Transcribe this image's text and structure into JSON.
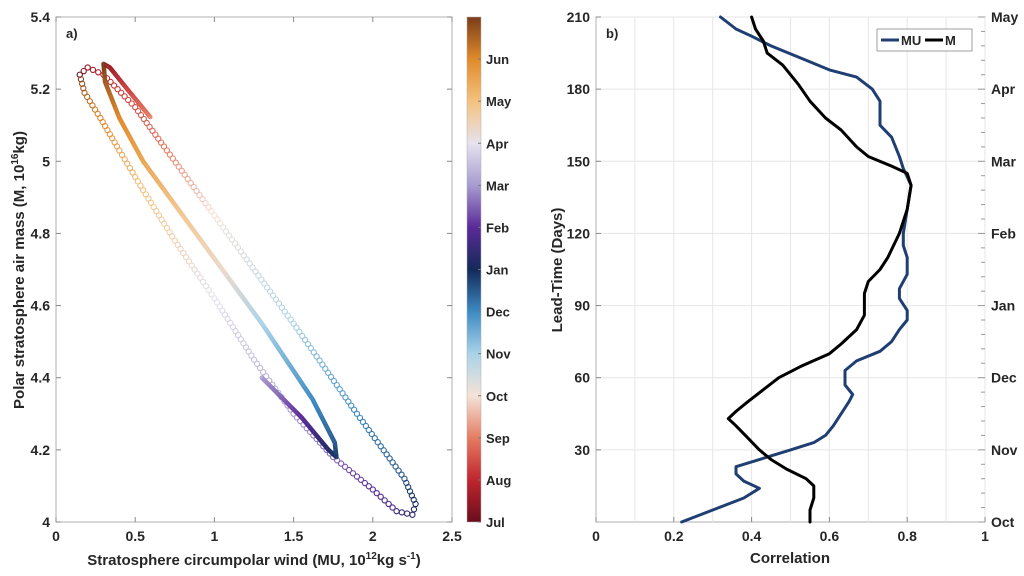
{
  "chart_data": [
    {
      "type": "scatter",
      "panel_label": "a)",
      "xlabel_parts": [
        "Stratosphere circumpolar wind (MU, 10",
        "12",
        "kg s",
        "-1",
        ")"
      ],
      "ylabel_parts": [
        "Polar stratosphere air mass (M, 10",
        "16",
        "kg)"
      ],
      "xlim": [
        0,
        2.5
      ],
      "ylim": [
        4,
        5.4
      ],
      "xticks": [
        0,
        0.5,
        1,
        1.5,
        2,
        2.5
      ],
      "xtick_labels": [
        "0",
        "0.5",
        "1",
        "1.5",
        "2",
        "2.5"
      ],
      "yticks": [
        4,
        4.2,
        4.4,
        4.6,
        4.8,
        5,
        5.2,
        5.4
      ],
      "ytick_labels": [
        "4",
        "4.2",
        "4.4",
        "4.6",
        "4.8",
        "5",
        "5.2",
        "5.4"
      ],
      "grid": false,
      "colorbar": {
        "labels": [
          "Jul",
          "Aug",
          "Sep",
          "Oct",
          "Nov",
          "Dec",
          "Jan",
          "Feb",
          "Mar",
          "Apr",
          "May",
          "Jun"
        ],
        "colors": [
          "#6a0d1c",
          "#c0252e",
          "#e57c62",
          "#f4e3d8",
          "#a9d3e8",
          "#3d8ac2",
          "#14295a",
          "#5a2a98",
          "#a79bd0",
          "#e6e2ee",
          "#f5c27e",
          "#e08a2a",
          "#7a3c1a"
        ]
      },
      "series": [
        {
          "marker": "open-circle",
          "points_month_mu_m": [
            [
              0,
              0.15,
              5.24
            ],
            [
              0.5,
              0.2,
              5.26
            ],
            [
              1,
              0.3,
              5.24
            ],
            [
              1.5,
              0.5,
              5.15
            ],
            [
              2,
              0.7,
              5.03
            ],
            [
              3,
              1.0,
              4.85
            ],
            [
              4,
              1.5,
              4.55
            ],
            [
              5,
              1.9,
              4.3
            ],
            [
              5.6,
              2.2,
              4.12
            ],
            [
              6,
              2.27,
              4.05
            ],
            [
              6.3,
              2.25,
              4.02
            ],
            [
              6.6,
              2.15,
              4.03
            ],
            [
              7,
              2.0,
              4.09
            ],
            [
              7.5,
              1.75,
              4.18
            ],
            [
              8,
              1.5,
              4.3
            ],
            [
              8.5,
              1.25,
              4.45
            ],
            [
              9,
              1.0,
              4.62
            ],
            [
              9.5,
              0.75,
              4.78
            ],
            [
              10,
              0.55,
              4.92
            ],
            [
              10.5,
              0.4,
              5.03
            ],
            [
              11,
              0.28,
              5.12
            ],
            [
              11.5,
              0.18,
              5.19
            ],
            [
              12,
              0.15,
              5.24
            ]
          ]
        },
        {
          "marker": "dense-circle",
          "points_month_mu_m": [
            [
              8,
              1.3,
              4.4
            ],
            [
              7,
              1.55,
              4.29
            ],
            [
              6.2,
              1.72,
              4.2
            ],
            [
              5.9,
              1.77,
              4.18
            ],
            [
              5.5,
              1.76,
              4.22
            ],
            [
              5,
              1.62,
              4.34
            ],
            [
              4,
              1.3,
              4.55
            ],
            [
              9.3,
              1.05,
              4.7
            ],
            [
              9.8,
              0.8,
              4.85
            ],
            [
              10.5,
              0.55,
              5.0
            ],
            [
              11,
              0.4,
              5.12
            ],
            [
              11.6,
              0.31,
              5.22
            ],
            [
              12,
              0.3,
              5.27
            ],
            [
              0.6,
              0.34,
              5.26
            ],
            [
              1.3,
              0.45,
              5.2
            ],
            [
              2,
              0.6,
              5.12
            ]
          ]
        }
      ]
    },
    {
      "type": "line",
      "panel_label": "b)",
      "xlabel": "Correlation",
      "ylabel": "Lead-Time (Days)",
      "xlim": [
        0,
        1
      ],
      "ylim": [
        0,
        210
      ],
      "xticks": [
        0,
        0.2,
        0.4,
        0.6,
        0.8,
        1
      ],
      "xtick_labels": [
        "0",
        "0.2",
        "0.4",
        "0.6",
        "0.8",
        "1"
      ],
      "yticks": [
        30,
        60,
        90,
        120,
        150,
        180,
        210
      ],
      "ytick_labels": [
        "30",
        "60",
        "90",
        "120",
        "150",
        "180",
        "210"
      ],
      "right_ticks": [
        0,
        30,
        60,
        90,
        120,
        150,
        180,
        210
      ],
      "right_tick_labels": [
        "Oct",
        "Nov",
        "Dec",
        "Jan",
        "Feb",
        "Mar",
        "Apr",
        "May"
      ],
      "grid": true,
      "legend_position": "top-right",
      "series": [
        {
          "name": "MU",
          "color": "#1f3f73",
          "days": [
            0,
            5,
            10,
            14,
            17,
            20,
            23,
            27,
            30,
            33,
            36,
            40,
            45,
            50,
            53,
            57,
            63,
            67,
            71,
            75,
            80,
            84,
            88,
            93,
            97,
            103,
            110,
            115,
            120,
            130,
            140,
            147,
            152,
            160,
            165,
            170,
            175,
            180,
            185,
            188,
            192,
            198,
            202,
            205,
            210
          ],
          "correlation": [
            0.22,
            0.3,
            0.38,
            0.42,
            0.38,
            0.36,
            0.36,
            0.44,
            0.5,
            0.56,
            0.59,
            0.61,
            0.63,
            0.65,
            0.66,
            0.64,
            0.64,
            0.67,
            0.73,
            0.76,
            0.78,
            0.8,
            0.8,
            0.78,
            0.78,
            0.8,
            0.8,
            0.79,
            0.79,
            0.8,
            0.81,
            0.79,
            0.78,
            0.76,
            0.73,
            0.73,
            0.73,
            0.71,
            0.67,
            0.6,
            0.54,
            0.45,
            0.4,
            0.36,
            0.32
          ]
        },
        {
          "name": "M",
          "color": "#000000",
          "days": [
            0,
            5,
            10,
            15,
            18,
            22,
            26,
            30,
            35,
            40,
            43,
            46,
            50,
            55,
            60,
            65,
            70,
            74,
            80,
            86,
            90,
            95,
            100,
            105,
            110,
            120,
            130,
            140,
            145,
            148,
            152,
            156,
            163,
            168,
            175,
            182,
            190,
            195,
            200,
            205,
            210
          ],
          "correlation": [
            0.55,
            0.55,
            0.56,
            0.56,
            0.54,
            0.49,
            0.45,
            0.42,
            0.39,
            0.36,
            0.34,
            0.36,
            0.39,
            0.43,
            0.47,
            0.53,
            0.6,
            0.63,
            0.67,
            0.69,
            0.69,
            0.69,
            0.7,
            0.73,
            0.75,
            0.78,
            0.8,
            0.81,
            0.8,
            0.76,
            0.7,
            0.67,
            0.63,
            0.59,
            0.55,
            0.52,
            0.48,
            0.44,
            0.43,
            0.41,
            0.4
          ]
        }
      ]
    }
  ]
}
